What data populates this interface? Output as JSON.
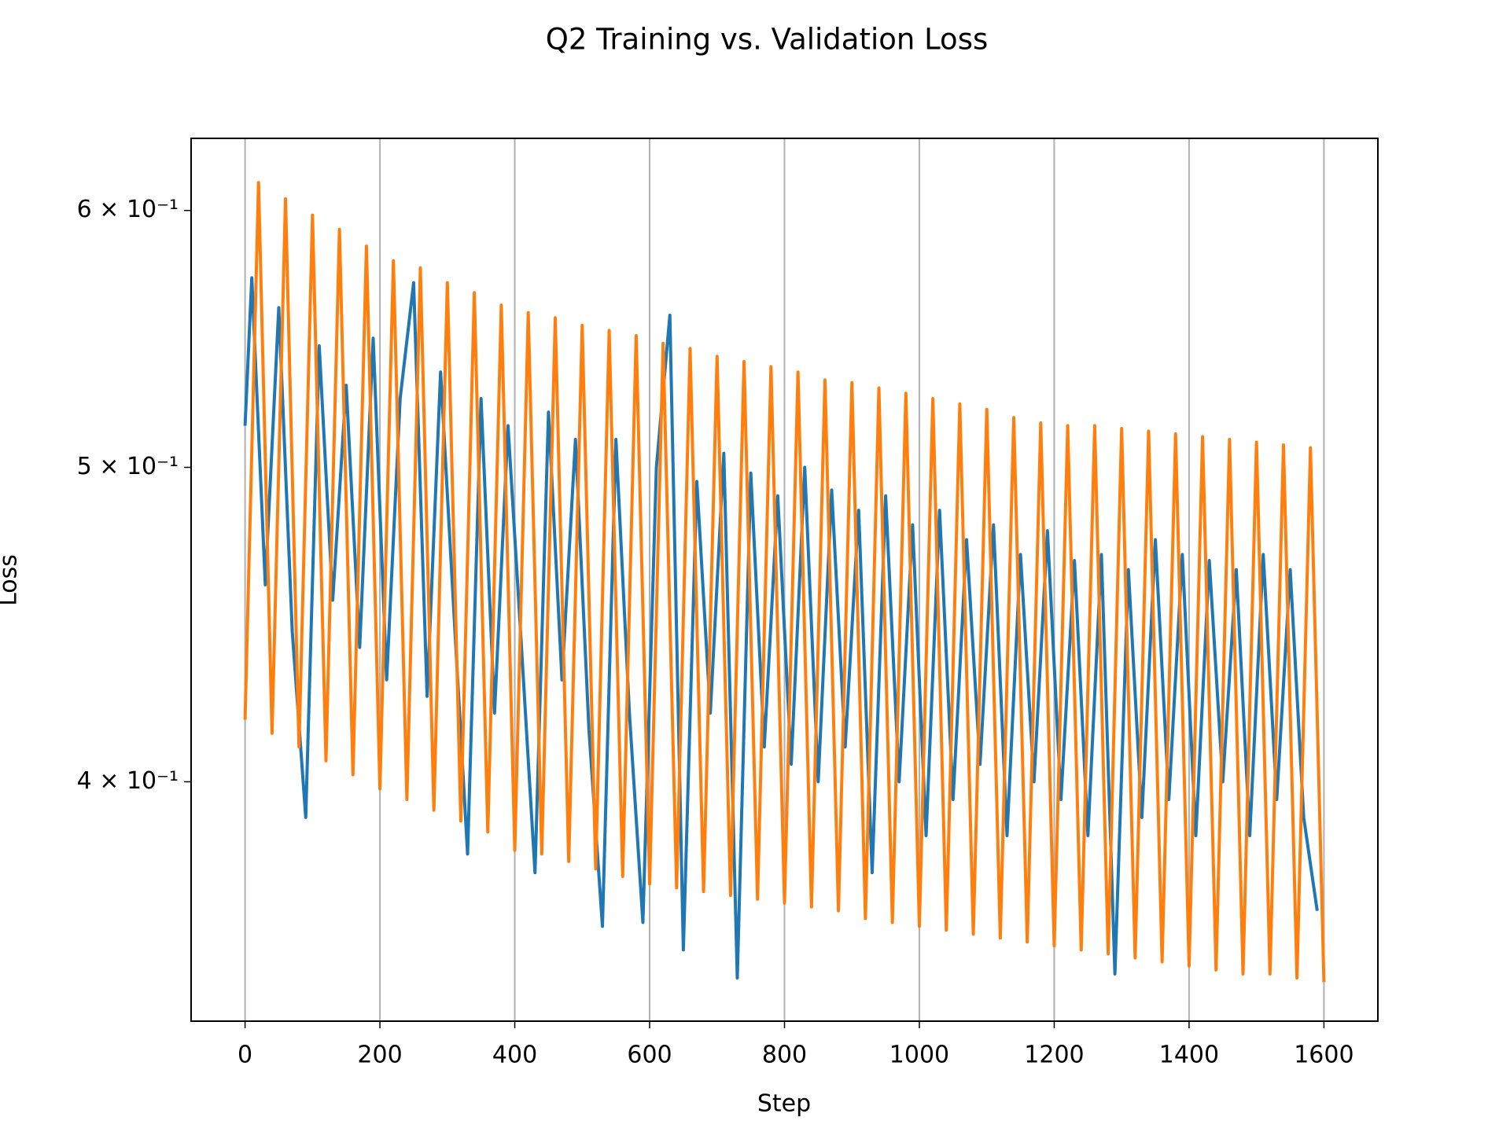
{
  "chart_data": {
    "type": "line",
    "title": "Q2 Training vs. Validation Loss",
    "xlabel": "Step",
    "ylabel": "Loss",
    "xlim": [
      -80,
      1680
    ],
    "xticks": [
      0,
      200,
      400,
      600,
      800,
      1000,
      1200,
      1400,
      1600
    ],
    "ylim": [
      0.3375,
      0.6315
    ],
    "yscale": "log",
    "yticks": [
      {
        "value": 0.4,
        "label": "4 × 10⁻¹"
      },
      {
        "value": 0.5,
        "label": "5 × 10⁻¹"
      },
      {
        "value": 0.6,
        "label": "6 × 10⁻¹"
      }
    ],
    "grid": "x",
    "series": [
      {
        "color": "#1f77b4",
        "x": [
          0,
          10,
          30,
          50,
          70,
          90,
          110,
          130,
          150,
          170,
          190,
          210,
          230,
          250,
          270,
          290,
          310,
          330,
          350,
          370,
          390,
          410,
          430,
          450,
          470,
          490,
          510,
          530,
          550,
          570,
          590,
          610,
          630,
          650,
          670,
          690,
          710,
          730,
          750,
          770,
          790,
          810,
          830,
          850,
          870,
          890,
          910,
          930,
          950,
          970,
          990,
          1010,
          1030,
          1050,
          1070,
          1090,
          1110,
          1130,
          1150,
          1170,
          1190,
          1210,
          1230,
          1250,
          1270,
          1290,
          1310,
          1330,
          1350,
          1370,
          1390,
          1410,
          1430,
          1450,
          1470,
          1490,
          1510,
          1530,
          1550,
          1570,
          1590
        ],
        "values": [
          0.515,
          0.572,
          0.46,
          0.56,
          0.445,
          0.39,
          0.545,
          0.455,
          0.53,
          0.44,
          0.548,
          0.43,
          0.525,
          0.57,
          0.425,
          0.535,
          0.45,
          0.38,
          0.525,
          0.42,
          0.515,
          0.44,
          0.375,
          0.52,
          0.43,
          0.51,
          0.415,
          0.361,
          0.51,
          0.42,
          0.362,
          0.5,
          0.557,
          0.355,
          0.495,
          0.42,
          0.505,
          0.348,
          0.498,
          0.41,
          0.49,
          0.405,
          0.5,
          0.4,
          0.492,
          0.41,
          0.485,
          0.375,
          0.49,
          0.4,
          0.48,
          0.385,
          0.485,
          0.395,
          0.475,
          0.405,
          0.48,
          0.385,
          0.47,
          0.4,
          0.478,
          0.395,
          0.468,
          0.385,
          0.47,
          0.349,
          0.465,
          0.39,
          0.475,
          0.395,
          0.47,
          0.385,
          0.468,
          0.4,
          0.465,
          0.385,
          0.47,
          0.395,
          0.465,
          0.39,
          0.365
        ]
      },
      {
        "color": "#ff7f0e",
        "x": [
          0,
          20,
          40,
          60,
          80,
          100,
          120,
          140,
          160,
          180,
          200,
          220,
          240,
          260,
          280,
          300,
          320,
          340,
          360,
          380,
          400,
          420,
          440,
          460,
          480,
          500,
          520,
          540,
          560,
          580,
          600,
          620,
          640,
          660,
          680,
          700,
          720,
          740,
          760,
          780,
          800,
          820,
          840,
          860,
          880,
          900,
          920,
          940,
          960,
          980,
          1000,
          1020,
          1040,
          1060,
          1080,
          1100,
          1120,
          1140,
          1160,
          1180,
          1200,
          1220,
          1240,
          1260,
          1280,
          1300,
          1320,
          1340,
          1360,
          1380,
          1400,
          1420,
          1440,
          1460,
          1480,
          1500,
          1520,
          1540,
          1560,
          1580,
          1600
        ],
        "values": [
          0.418,
          0.612,
          0.414,
          0.605,
          0.41,
          0.598,
          0.406,
          0.592,
          0.402,
          0.585,
          0.398,
          0.579,
          0.395,
          0.576,
          0.392,
          0.57,
          0.389,
          0.566,
          0.386,
          0.561,
          0.381,
          0.558,
          0.38,
          0.556,
          0.378,
          0.553,
          0.376,
          0.551,
          0.374,
          0.549,
          0.372,
          0.546,
          0.371,
          0.544,
          0.37,
          0.541,
          0.369,
          0.539,
          0.368,
          0.537,
          0.367,
          0.535,
          0.366,
          0.532,
          0.365,
          0.531,
          0.363,
          0.529,
          0.362,
          0.527,
          0.361,
          0.525,
          0.36,
          0.523,
          0.359,
          0.521,
          0.358,
          0.518,
          0.357,
          0.516,
          0.356,
          0.515,
          0.355,
          0.515,
          0.354,
          0.514,
          0.353,
          0.513,
          0.352,
          0.512,
          0.351,
          0.511,
          0.35,
          0.51,
          0.349,
          0.509,
          0.349,
          0.508,
          0.348,
          0.507,
          0.347
        ]
      }
    ]
  }
}
